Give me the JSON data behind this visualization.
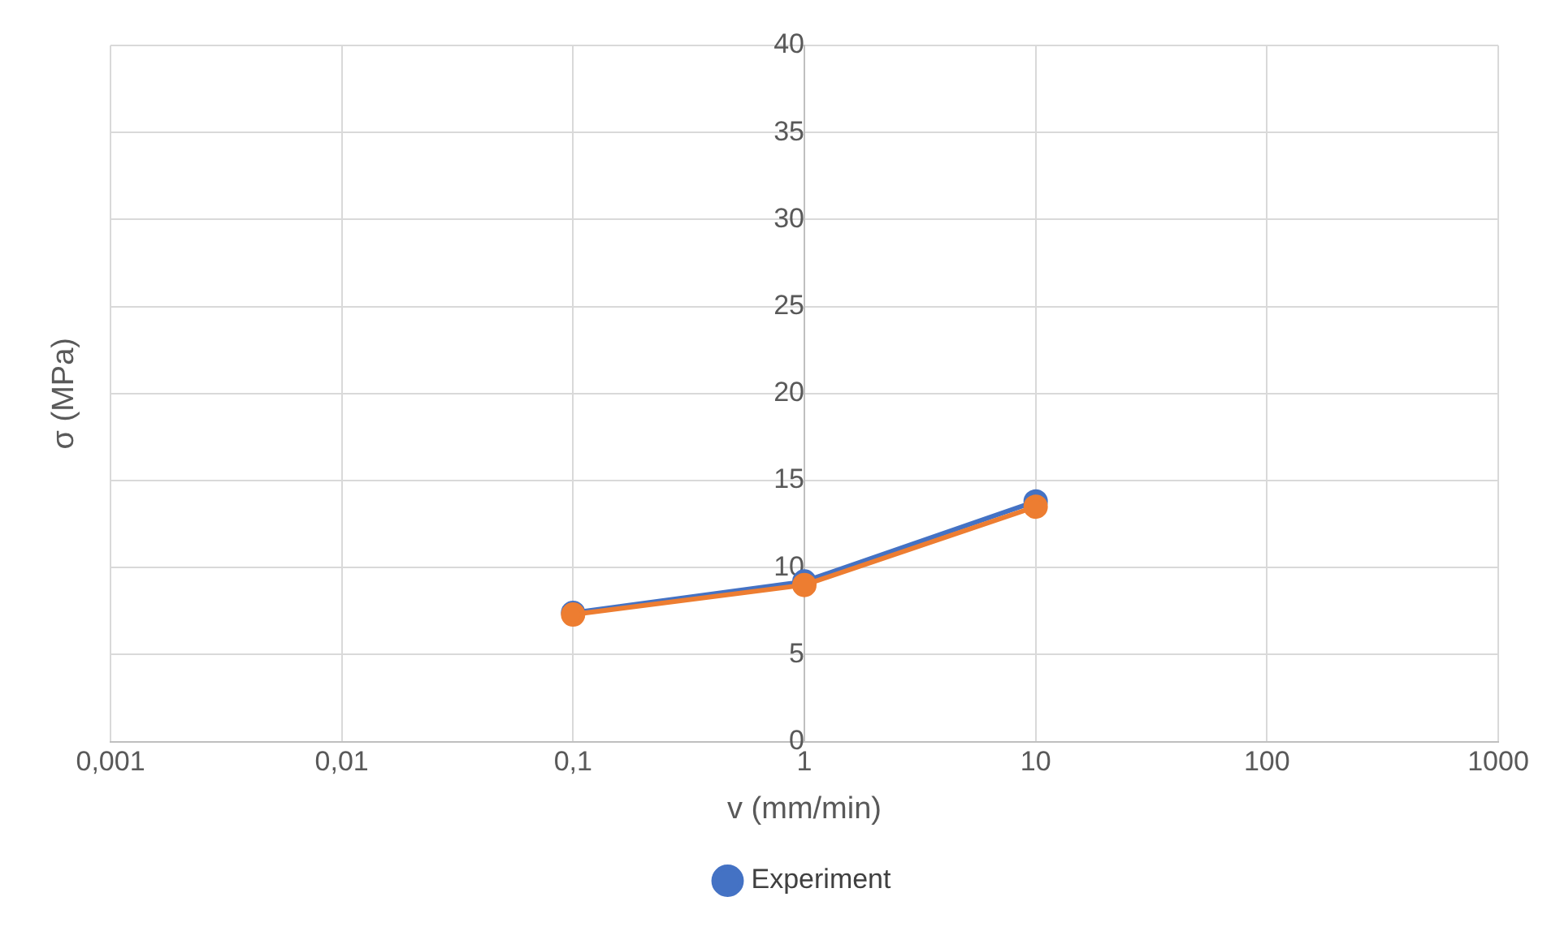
{
  "chart_data": {
    "type": "line",
    "xlabel": "v (mm/min)",
    "ylabel": "σ (MPa)",
    "log": "x",
    "x": [
      0.1,
      1,
      10
    ],
    "series": [
      {
        "name": "Experiment",
        "color": "#4472c4",
        "values": [
          7.4,
          9.2,
          13.8
        ]
      },
      {
        "color": "#ed7d31",
        "values": [
          7.3,
          9.0,
          13.5
        ]
      }
    ],
    "xlim": [
      0.001,
      1000
    ],
    "xticks": [
      {
        "value": 0.001,
        "label": "0,001"
      },
      {
        "value": 0.01,
        "label": "0,01"
      },
      {
        "value": 0.1,
        "label": "0,1"
      },
      1,
      10,
      100,
      1000
    ],
    "ylim": [
      0,
      40
    ],
    "yticks": [
      0,
      5,
      10,
      15,
      20,
      25,
      30,
      35,
      40
    ],
    "grid": true,
    "legend": "bottom",
    "marker": "circle",
    "line_style": "solid"
  }
}
